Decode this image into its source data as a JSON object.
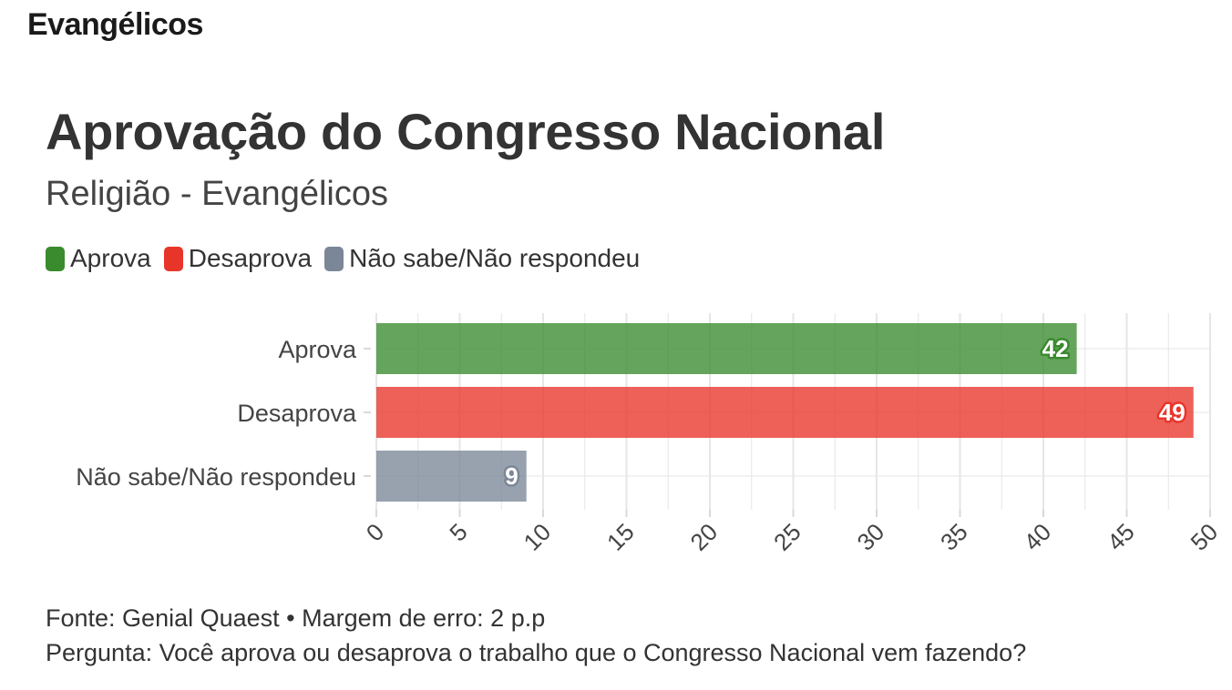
{
  "header": {
    "title": "Evangélicos"
  },
  "colors": {
    "aprova": "#3a8a2e",
    "desaprova": "#e8352a",
    "nsnr": "#7b8797",
    "grid": "#e6e6e6",
    "text": "#333333"
  },
  "chart_data": {
    "type": "bar",
    "orientation": "horizontal",
    "title": "Aprovação do Congresso Nacional",
    "subtitle": "Religião - Evangélicos",
    "categories": [
      "Aprova",
      "Desaprova",
      "Não sabe/Não respondeu"
    ],
    "values": [
      42,
      49,
      9
    ],
    "legend": [
      "Aprova",
      "Desaprova",
      "Não sabe/Não respondeu"
    ],
    "legend_position": "top-left",
    "xlim": [
      0,
      50
    ],
    "xticks": [
      0,
      5,
      10,
      15,
      20,
      25,
      30,
      35,
      40,
      45,
      50
    ],
    "grid": true,
    "data_labels": [
      "42",
      "49",
      "9"
    ]
  },
  "footer": {
    "source": "Fonte: Genial Quaest • Margem de erro: 2 p.p",
    "question": "Pergunta: Você aprova ou desaprova o trabalho que o Congresso Nacional vem fazendo?"
  }
}
